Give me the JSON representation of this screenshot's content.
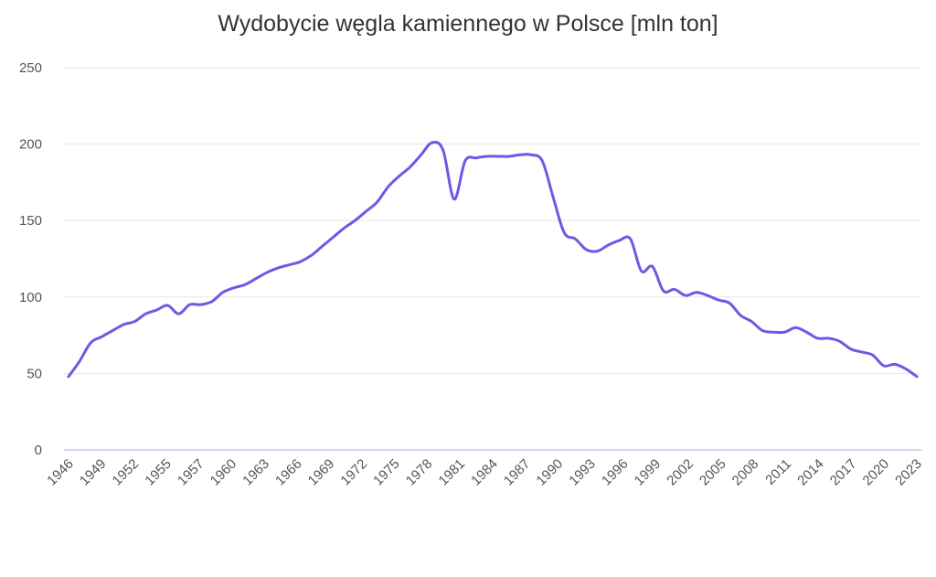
{
  "chart_data": {
    "type": "line",
    "title": "Wydobycie węgla kamiennego w Polsce [mln ton]",
    "xlabel": "",
    "ylabel": "",
    "ylim": [
      0,
      250
    ],
    "yticks": [
      0,
      50,
      100,
      150,
      200,
      250
    ],
    "grid": true,
    "legend": "none",
    "line_color": "#6b5ae6",
    "xtick_labels": [
      "1946",
      "1949",
      "1952",
      "1955",
      "1957",
      "1960",
      "1963",
      "1966",
      "1969",
      "1972",
      "1975",
      "1978",
      "1981",
      "1984",
      "1987",
      "1990",
      "1993",
      "1996",
      "1999",
      "2002",
      "2005",
      "2008",
      "2011",
      "2014",
      "2017",
      "2020",
      "2023"
    ],
    "x": [
      1946,
      1947,
      1948,
      1949,
      1950,
      1951,
      1952,
      1953,
      1954,
      1955,
      1956,
      1957,
      1958,
      1959,
      1960,
      1961,
      1962,
      1963,
      1964,
      1965,
      1966,
      1967,
      1968,
      1969,
      1970,
      1971,
      1972,
      1973,
      1974,
      1975,
      1976,
      1977,
      1978,
      1979,
      1980,
      1981,
      1982,
      1983,
      1984,
      1985,
      1986,
      1987,
      1988,
      1989,
      1990,
      1991,
      1992,
      1993,
      1994,
      1995,
      1996,
      1997,
      1998,
      1999,
      2000,
      2001,
      2002,
      2003,
      2004,
      2005,
      2006,
      2007,
      2008,
      2009,
      2010,
      2011,
      2012,
      2013,
      2014,
      2015,
      2016,
      2017,
      2018,
      2019,
      2020,
      2021,
      2022,
      2023
    ],
    "values": [
      48,
      58,
      70,
      74,
      78,
      82,
      84,
      89,
      91.5,
      94.5,
      89,
      95,
      95,
      97,
      103,
      106,
      108,
      112,
      116,
      119,
      121,
      123,
      127,
      133,
      139,
      145,
      150,
      156,
      162,
      172,
      179,
      185,
      193,
      201,
      196,
      164,
      189,
      191,
      192,
      192,
      192,
      193,
      193,
      189,
      165,
      142,
      138,
      131,
      130,
      134,
      137,
      138,
      117,
      120,
      104,
      105,
      101,
      103,
      101,
      98,
      96,
      88,
      84,
      78,
      77,
      77,
      80,
      77,
      73,
      73,
      71,
      66,
      64,
      62,
      55,
      56,
      53,
      48
    ]
  }
}
